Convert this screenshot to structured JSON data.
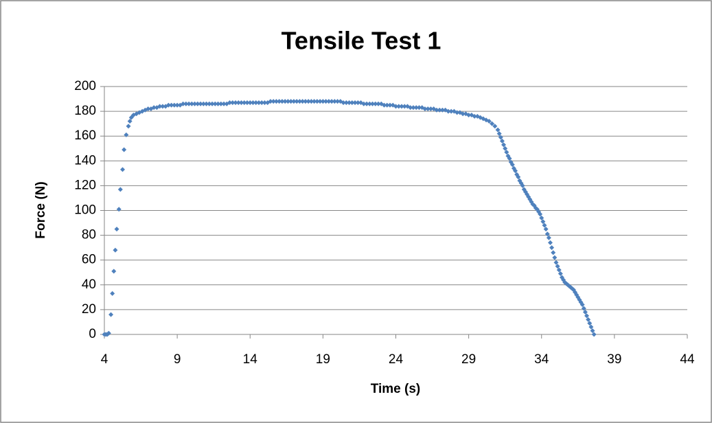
{
  "chart_data": {
    "type": "scatter",
    "title": "Tensile Test 1",
    "x_label": "Time (s)",
    "y_label": "Force (N)",
    "series": [
      {
        "color": "#4f81bd",
        "x": [
          4.0,
          4.1,
          4.2,
          4.3,
          4.45,
          4.55,
          4.65,
          4.75,
          4.85,
          5.0,
          5.1,
          5.25,
          5.35,
          5.5,
          5.65,
          5.75,
          5.85,
          6.0,
          6.2,
          6.4,
          6.6,
          6.8,
          7.0,
          7.2,
          7.4,
          7.6,
          7.8,
          8.0,
          8.2,
          8.4,
          8.6,
          8.8,
          9.0,
          9.2,
          9.4,
          9.6,
          9.8,
          10.0,
          10.2,
          10.4,
          10.6,
          10.8,
          11.0,
          11.2,
          11.4,
          11.6,
          11.8,
          12.0,
          12.2,
          12.4,
          12.6,
          12.8,
          13.0,
          13.2,
          13.4,
          13.6,
          13.8,
          14.0,
          14.2,
          14.4,
          14.6,
          14.8,
          15.0,
          15.2,
          15.4,
          15.6,
          15.8,
          16.0,
          16.2,
          16.4,
          16.6,
          16.8,
          17.0,
          17.2,
          17.4,
          17.6,
          17.8,
          18.0,
          18.2,
          18.4,
          18.6,
          18.8,
          19.0,
          19.2,
          19.4,
          19.6,
          19.8,
          20.0,
          20.2,
          20.4,
          20.6,
          20.8,
          21.0,
          21.2,
          21.4,
          21.6,
          21.8,
          22.0,
          22.2,
          22.4,
          22.6,
          22.8,
          23.0,
          23.2,
          23.4,
          23.6,
          23.8,
          24.0,
          24.2,
          24.4,
          24.6,
          24.8,
          25.0,
          25.2,
          25.4,
          25.6,
          25.8,
          26.0,
          26.2,
          26.4,
          26.6,
          26.8,
          27.0,
          27.2,
          27.4,
          27.6,
          27.8,
          28.0,
          28.2,
          28.4,
          28.6,
          28.8,
          29.0,
          29.2,
          29.4,
          29.6,
          29.8,
          30.0,
          30.2,
          30.4,
          30.6,
          30.8,
          31.0,
          31.1,
          31.2,
          31.3,
          31.4,
          31.5,
          31.6,
          31.7,
          31.8,
          31.9,
          32.0,
          32.1,
          32.2,
          32.3,
          32.4,
          32.5,
          32.6,
          32.7,
          32.8,
          32.9,
          33.0,
          33.1,
          33.2,
          33.3,
          33.4,
          33.5,
          33.6,
          33.7,
          33.8,
          33.9,
          34.0,
          34.1,
          34.2,
          34.3,
          34.4,
          34.5,
          34.6,
          34.7,
          34.8,
          34.9,
          35.0,
          35.1,
          35.2,
          35.3,
          35.4,
          35.5,
          35.6,
          35.7,
          35.8,
          35.9,
          36.0,
          36.1,
          36.2,
          36.3,
          36.4,
          36.5,
          36.6,
          36.7,
          36.8,
          36.9,
          37.0,
          37.1,
          37.2,
          37.3,
          37.4,
          37.5,
          37.6
        ],
        "values": [
          0,
          0,
          0,
          1,
          16,
          33,
          51,
          68,
          85,
          101,
          117,
          133,
          149,
          161,
          168,
          172,
          175,
          177,
          178,
          179,
          180,
          181,
          182,
          182,
          183,
          183,
          184,
          184,
          184,
          185,
          185,
          185,
          185,
          185,
          186,
          186,
          186,
          186,
          186,
          186,
          186,
          186,
          186,
          186,
          186,
          186,
          186,
          186,
          186,
          186,
          187,
          187,
          187,
          187,
          187,
          187,
          187,
          187,
          187,
          187,
          187,
          187,
          187,
          187,
          188,
          188,
          188,
          188,
          188,
          188,
          188,
          188,
          188,
          188,
          188,
          188,
          188,
          188,
          188,
          188,
          188,
          188,
          188,
          188,
          188,
          188,
          188,
          188,
          188,
          187,
          187,
          187,
          187,
          187,
          187,
          187,
          186,
          186,
          186,
          186,
          186,
          186,
          186,
          185,
          185,
          185,
          185,
          184,
          184,
          184,
          184,
          184,
          183,
          183,
          183,
          183,
          183,
          182,
          182,
          182,
          182,
          181,
          181,
          181,
          181,
          180,
          180,
          180,
          179,
          179,
          178,
          178,
          177,
          177,
          176,
          176,
          175,
          174,
          173,
          172,
          170,
          168,
          165,
          162,
          159,
          156,
          153,
          150,
          147,
          144,
          142,
          139,
          137,
          134,
          132,
          129,
          127,
          124,
          122,
          120,
          117,
          115,
          113,
          111,
          109,
          107,
          105,
          104,
          102,
          101,
          99,
          97,
          94,
          91,
          88,
          85,
          81,
          78,
          74,
          70,
          66,
          62,
          58,
          55,
          52,
          49,
          46,
          44,
          42,
          41,
          40,
          39,
          38,
          37,
          36,
          34,
          32,
          30,
          28,
          26,
          24,
          21,
          18,
          15,
          12,
          9,
          6,
          3,
          0
        ]
      }
    ],
    "xlim": [
      4,
      44
    ],
    "xticks": [
      4,
      9,
      14,
      19,
      24,
      29,
      34,
      39,
      44
    ],
    "ylim": [
      0,
      200
    ],
    "yticks": [
      0,
      20,
      40,
      60,
      80,
      100,
      120,
      140,
      160,
      180,
      200
    ],
    "grid": true
  }
}
